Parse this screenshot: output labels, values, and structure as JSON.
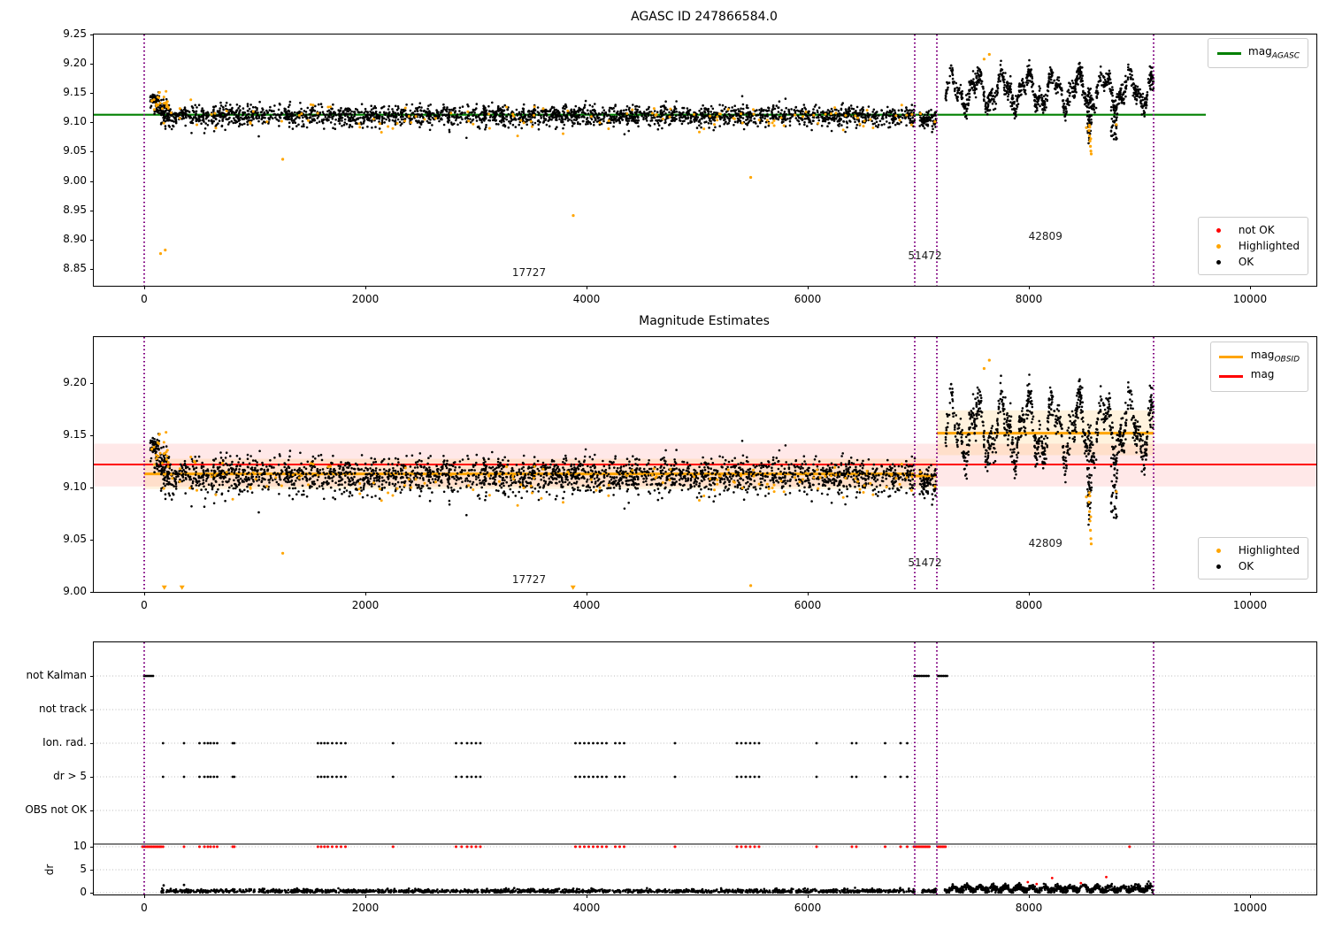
{
  "figure": {
    "background": "#ffffff"
  },
  "chart_data": [
    {
      "type": "scatter",
      "title": "AGASC ID 247866584.0",
      "xlim": [
        -456,
        10600
      ],
      "ylim": [
        8.821,
        9.25
      ],
      "x_ticks": [
        0,
        2000,
        4000,
        6000,
        8000,
        10000
      ],
      "y_ticks": [
        9.25,
        9.2,
        9.15,
        9.1,
        9.05,
        9.0,
        8.95,
        8.9,
        8.85
      ],
      "vline_color": "#800080",
      "vlines": [
        0,
        6968,
        7168,
        9128
      ],
      "hlines": [
        {
          "y": 9.113,
          "x0": -456,
          "x1": 9600,
          "color": "#008000",
          "w": 2.2
        }
      ],
      "bands": [],
      "annotations": [
        {
          "text": "17727",
          "x": 3480,
          "y": 8.843
        },
        {
          "text": "51472",
          "x": 7060,
          "y": 8.872
        },
        {
          "text": "42809",
          "x": 8150,
          "y": 8.905
        }
      ],
      "legend_top": {
        "items": [
          {
            "swatch": "line",
            "color": "#008000",
            "label": "mag",
            "sub": "AGASC"
          }
        ]
      },
      "legend_bottom": {
        "items": [
          {
            "swatch": "dot",
            "color": "#ff0000",
            "label": "not OK"
          },
          {
            "swatch": "dot",
            "color": "#ffa500",
            "label": "Highlighted"
          },
          {
            "swatch": "dot",
            "color": "#000000",
            "label": "OK"
          }
        ]
      },
      "series": [
        {
          "kind": "cluster",
          "color": "#000000",
          "r": 1.3,
          "x0": 55,
          "x1": 135,
          "n": 45,
          "y": 9.139,
          "sd": 0.006
        },
        {
          "kind": "cluster",
          "color": "#000000",
          "r": 1.3,
          "x0": 90,
          "x1": 240,
          "n": 60,
          "y": 9.124,
          "sd": 0.007
        },
        {
          "kind": "cluster",
          "color": "#000000",
          "r": 1.3,
          "x0": 140,
          "x1": 6968,
          "n": 2450,
          "y": 9.1115,
          "sd": 0.0085
        },
        {
          "kind": "cluster",
          "color": "#000000",
          "r": 1.3,
          "x0": 140,
          "x1": 6968,
          "n": 70,
          "y": 9.097,
          "sd": 0.009
        },
        {
          "kind": "cluster",
          "color": "#000000",
          "r": 1.3,
          "x0": 7012,
          "x1": 7160,
          "n": 85,
          "y": 9.104,
          "sd": 0.009
        },
        {
          "kind": "wave",
          "color": "#000000",
          "r": 1.3,
          "x0": 7245,
          "x1": 9128,
          "n": 980,
          "base": 9.154,
          "amp1": 0.024,
          "f1": 8.2,
          "amp2": 0.012,
          "f2": 21.0,
          "sd": 0.0085,
          "clip": [
            9.062,
            9.226
          ]
        },
        {
          "kind": "cluster",
          "color": "#000000",
          "r": 1.3,
          "x0": 8528,
          "x1": 8572,
          "n": 40,
          "y": 9.1,
          "sd": 0.016
        },
        {
          "kind": "cluster",
          "color": "#000000",
          "r": 1.3,
          "x0": 8740,
          "x1": 8800,
          "n": 30,
          "y": 9.093,
          "sd": 0.014
        },
        {
          "kind": "cluster",
          "color": "#ffa500",
          "r": 1.5,
          "x0": 55,
          "x1": 220,
          "n": 22,
          "y": 9.134,
          "sd": 0.01
        },
        {
          "kind": "cluster",
          "color": "#ffa500",
          "r": 1.5,
          "x0": 140,
          "x1": 6968,
          "n": 120,
          "y": 9.109,
          "sd": 0.012
        },
        {
          "kind": "points",
          "color": "#ffa500",
          "r": 1.6,
          "pts": [
            [
              148,
              8.876
            ],
            [
              190,
              8.882
            ],
            [
              1253,
              9.037
            ],
            [
              3880,
              8.941
            ],
            [
              5485,
              9.006
            ],
            [
              7020,
              9.115
            ],
            [
              7150,
              9.101
            ]
          ]
        },
        {
          "kind": "points",
          "color": "#ffa500",
          "r": 1.6,
          "pts": [
            [
              7595,
              9.208
            ],
            [
              7642,
              9.216
            ],
            [
              8520,
              9.091
            ],
            [
              8790,
              9.096
            ],
            [
              8544,
              9.086
            ],
            [
              8549,
              9.077
            ],
            [
              8553,
              9.068
            ],
            [
              8557,
              9.059
            ],
            [
              8561,
              9.051
            ],
            [
              8564,
              9.046
            ],
            [
              8551,
              9.092
            ],
            [
              8559,
              9.072
            ],
            [
              8547,
              9.095
            ]
          ]
        }
      ]
    },
    {
      "type": "scatter",
      "title": "Magnitude Estimates",
      "xlim": [
        -456,
        10600
      ],
      "ylim": [
        9.0,
        9.2441
      ],
      "clip_low": 9.002,
      "x_ticks": [
        0,
        2000,
        4000,
        6000,
        8000,
        10000
      ],
      "y_ticks": [
        9.2,
        9.15,
        9.1,
        9.05,
        9.0
      ],
      "vline_color": "#800080",
      "vlines": [
        0,
        6968,
        7168,
        9128
      ],
      "hlines": [
        {
          "y": 9.122,
          "x0": -456,
          "x1": 10600,
          "color": "#ff0000",
          "w": 2
        },
        {
          "y": 9.113,
          "x0": 0,
          "x1": 6968,
          "color": "#ffa500",
          "w": 3
        },
        {
          "y": 9.111,
          "x0": 6968,
          "x1": 7168,
          "color": "#ffa500",
          "w": 3
        },
        {
          "y": 9.152,
          "x0": 7168,
          "x1": 9128,
          "color": "#ffa500",
          "w": 3
        }
      ],
      "bands": [
        {
          "x0": -456,
          "x1": 10600,
          "y0": 9.101,
          "y1": 9.142,
          "color": "rgba(255,0,0,0.09)"
        },
        {
          "x0": 0,
          "x1": 7168,
          "y0": 9.0985,
          "y1": 9.1275,
          "color": "rgba(255,165,0,0.13)"
        },
        {
          "x0": 7168,
          "x1": 9128,
          "y0": 9.131,
          "y1": 9.174,
          "color": "rgba(255,165,0,0.13)"
        }
      ],
      "annotations": [
        {
          "text": "17727",
          "x": 3480,
          "y": 9.012
        },
        {
          "text": "51472",
          "x": 7060,
          "y": 9.028
        },
        {
          "text": "42809",
          "x": 8150,
          "y": 9.047
        }
      ],
      "legend_top": {
        "items": [
          {
            "swatch": "line",
            "color": "#ffa500",
            "label": "mag",
            "sub": "OBSID"
          },
          {
            "swatch": "line",
            "color": "#ff0000",
            "label": "mag"
          }
        ]
      },
      "legend_bottom": {
        "items": [
          {
            "swatch": "dot",
            "color": "#ffa500",
            "label": "Highlighted"
          },
          {
            "swatch": "dot",
            "color": "#000000",
            "label": "OK"
          }
        ]
      },
      "triangles": {
        "color": "#ffa500",
        "pts": [
          [
            182,
            9.004
          ],
          [
            342,
            9.004
          ],
          [
            3878,
            9.004
          ]
        ]
      },
      "series": [
        {
          "kind": "cluster",
          "color": "#000000",
          "r": 1.3,
          "x0": 55,
          "x1": 135,
          "n": 45,
          "y": 9.139,
          "sd": 0.006
        },
        {
          "kind": "cluster",
          "color": "#000000",
          "r": 1.3,
          "x0": 90,
          "x1": 240,
          "n": 60,
          "y": 9.124,
          "sd": 0.007
        },
        {
          "kind": "cluster",
          "color": "#000000",
          "r": 1.3,
          "x0": 140,
          "x1": 6968,
          "n": 2450,
          "y": 9.1115,
          "sd": 0.0085
        },
        {
          "kind": "cluster",
          "color": "#000000",
          "r": 1.3,
          "x0": 140,
          "x1": 6968,
          "n": 70,
          "y": 9.097,
          "sd": 0.009
        },
        {
          "kind": "cluster",
          "color": "#000000",
          "r": 1.3,
          "x0": 7012,
          "x1": 7160,
          "n": 85,
          "y": 9.104,
          "sd": 0.009
        },
        {
          "kind": "wave",
          "color": "#000000",
          "r": 1.3,
          "x0": 7245,
          "x1": 9128,
          "n": 980,
          "base": 9.156,
          "amp1": 0.024,
          "f1": 8.2,
          "amp2": 0.012,
          "f2": 21.0,
          "sd": 0.0085,
          "clip": [
            9.06,
            9.232
          ]
        },
        {
          "kind": "cluster",
          "color": "#000000",
          "r": 1.3,
          "x0": 8528,
          "x1": 8572,
          "n": 40,
          "y": 9.1,
          "sd": 0.016
        },
        {
          "kind": "cluster",
          "color": "#000000",
          "r": 1.3,
          "x0": 8740,
          "x1": 8800,
          "n": 30,
          "y": 9.093,
          "sd": 0.014
        },
        {
          "kind": "cluster",
          "color": "#ffa500",
          "r": 1.5,
          "x0": 55,
          "x1": 220,
          "n": 22,
          "y": 9.134,
          "sd": 0.01
        },
        {
          "kind": "cluster",
          "color": "#ffa500",
          "r": 1.5,
          "x0": 140,
          "x1": 6968,
          "n": 140,
          "y": 9.107,
          "sd": 0.009
        },
        {
          "kind": "points",
          "color": "#ffa500",
          "r": 1.6,
          "pts": [
            [
              1253,
              9.037
            ],
            [
              5485,
              9.006
            ],
            [
              7020,
              9.115
            ],
            [
              7150,
              9.101
            ]
          ]
        },
        {
          "kind": "points",
          "color": "#ffa500",
          "r": 1.6,
          "pts": [
            [
              7595,
              9.214
            ],
            [
              7642,
              9.222
            ],
            [
              8520,
              9.091
            ],
            [
              8790,
              9.096
            ],
            [
              8544,
              9.086
            ],
            [
              8549,
              9.077
            ],
            [
              8553,
              9.068
            ],
            [
              8557,
              9.059
            ],
            [
              8561,
              9.051
            ],
            [
              8564,
              9.046
            ],
            [
              8551,
              9.092
            ],
            [
              8559,
              9.072
            ],
            [
              8547,
              9.095
            ]
          ]
        }
      ]
    },
    {
      "type": "flags",
      "rows": [
        "not Kalman",
        "not track",
        "Ion. rad.",
        "dr > 5",
        "OBS not OK"
      ],
      "dr_ticks": [
        10,
        5,
        0
      ],
      "ylabel": "dr",
      "xlim": [
        -456,
        10600
      ],
      "x_ticks": [
        0,
        2000,
        4000,
        6000,
        8000,
        10000
      ],
      "vline_color": "#800080",
      "vlines": [
        0,
        6968,
        7168,
        9128
      ],
      "solid_hline_dr": 10.58,
      "flag_x": [
        170,
        360,
        500,
        545,
        575,
        600,
        630,
        660,
        800,
        815,
        1570,
        1600,
        1630,
        1660,
        1700,
        1740,
        1780,
        1820,
        2250,
        2820,
        2870,
        2920,
        2960,
        3000,
        3040,
        3900,
        3940,
        3980,
        4020,
        4060,
        4100,
        4140,
        4180,
        4260,
        4300,
        4340,
        4800,
        5360,
        5400,
        5440,
        5480,
        5520,
        5560,
        6080,
        6400,
        6440,
        6700,
        6840,
        6900
      ],
      "series": [
        {
          "kind": "flag_ranges",
          "row": 0,
          "ranges": [
            [
              0,
              95
            ],
            [
              6965,
              7105
            ],
            [
              7180,
              7268
            ]
          ],
          "step": 16,
          "color": "#000000"
        },
        {
          "kind": "flag_points",
          "row": 2,
          "x_ref": true,
          "color": "#000000"
        },
        {
          "kind": "flag_points",
          "row": 3,
          "x_ref": true,
          "color": "#000000"
        },
        {
          "kind": "dr_ranges",
          "value": 10,
          "ranges": [
            [
              -15,
              160
            ],
            [
              6960,
              7105
            ],
            [
              7176,
              7256
            ]
          ],
          "step": 14,
          "color": "#ff0000"
        },
        {
          "kind": "dr_points",
          "value": 10,
          "x_ref": true,
          "extra": [
            8910
          ],
          "color": "#ff0000"
        },
        {
          "kind": "dr_cluster",
          "x0": 150,
          "x1": 6968,
          "n": 1500,
          "y": 0.35,
          "sd": 0.22,
          "clip": [
            0.04,
            2.0
          ],
          "color": "#000000"
        },
        {
          "kind": "dr_cluster",
          "x0": 7035,
          "x1": 7168,
          "n": 70,
          "y": 0.35,
          "sd": 0.2,
          "clip": [
            0.04,
            1.2
          ],
          "color": "#000000"
        },
        {
          "kind": "dr_wave",
          "x0": 7240,
          "x1": 9128,
          "n": 980,
          "base": 0.85,
          "amp": 0.45,
          "f": 16.0,
          "sd": 0.35,
          "clip": [
            0.04,
            4.2
          ],
          "color": "#000000"
        },
        {
          "kind": "dr_pts",
          "pts": [
            [
              176,
              1.6
            ],
            [
              360,
              1.7
            ]
          ],
          "color": "#000000"
        },
        {
          "kind": "dr_pts",
          "pts": [
            [
              7990,
              2.3
            ],
            [
              8210,
              3.2
            ],
            [
              8470,
              2.1
            ],
            [
              8700,
              3.4
            ],
            [
              8070,
              1.9
            ]
          ],
          "color": "#ff0000"
        }
      ]
    }
  ]
}
